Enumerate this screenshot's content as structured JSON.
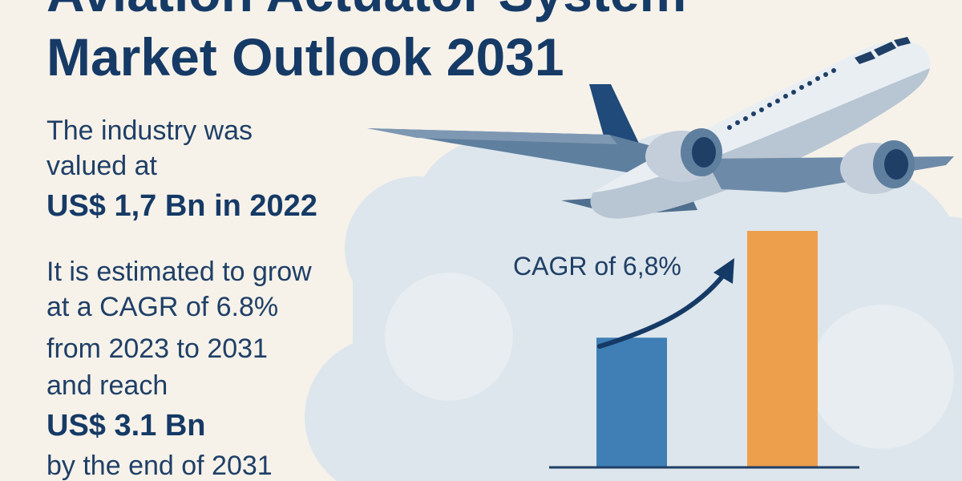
{
  "title": {
    "line1": "Aviation Actuator System",
    "line2": "Market Outlook 2031"
  },
  "valued": {
    "line1": "The industry was",
    "line2": "valued at",
    "amount": "US$ 1,7 Bn in 2022"
  },
  "growth": {
    "line1": "It is estimated to grow",
    "line2": "at a CAGR of 6.8%",
    "line3": "from 2023 to 2031",
    "line4": "and reach",
    "amount": "US$ 3.1 Bn",
    "line5": "by the end of 2031"
  },
  "chart_data": {
    "type": "bar",
    "categories": [
      "",
      ""
    ],
    "values": [
      1.7,
      3.1
    ],
    "annotation": "CAGR of 6,8%",
    "colors": [
      "#3f7fb5",
      "#ee9f4c"
    ]
  },
  "colors": {
    "background": "#f6f2ea",
    "title": "#163a66",
    "text": "#1f3f66",
    "cloud": "#dde6ec"
  }
}
